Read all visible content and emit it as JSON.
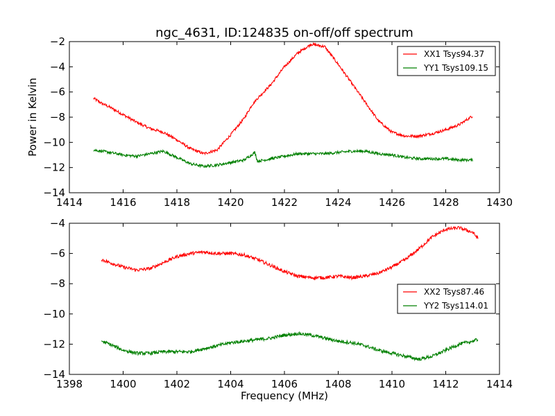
{
  "chart_data": [
    {
      "type": "line",
      "title": "ngc_4631, ID:124835 on-off/off spectrum",
      "xlabel": "",
      "ylabel": "Power in Kelvin",
      "xlim": [
        1414,
        1430
      ],
      "ylim": [
        -14,
        -2
      ],
      "xticks": [
        1414,
        1416,
        1418,
        1420,
        1422,
        1424,
        1426,
        1428,
        1430
      ],
      "yticks": [
        -14,
        -12,
        -10,
        -8,
        -6,
        -4,
        -2
      ],
      "legend_position": "top-right",
      "grid": false,
      "series": [
        {
          "name": "XX1 Tsys94.37",
          "color": "#ff0000",
          "x": [
            1414.9,
            1415.2,
            1415.5,
            1416.0,
            1416.5,
            1417.0,
            1417.5,
            1418.0,
            1418.5,
            1419.0,
            1419.5,
            1420.0,
            1420.5,
            1420.8,
            1421.0,
            1421.5,
            1422.0,
            1422.5,
            1423.0,
            1423.5,
            1424.0,
            1424.5,
            1425.0,
            1425.5,
            1426.0,
            1426.5,
            1427.0,
            1427.5,
            1428.0,
            1428.5,
            1429.0
          ],
          "y": [
            -6.5,
            -6.9,
            -7.2,
            -7.8,
            -8.4,
            -8.9,
            -9.2,
            -9.8,
            -10.5,
            -10.9,
            -10.6,
            -9.4,
            -8.1,
            -7.0,
            -6.5,
            -5.4,
            -4.0,
            -2.9,
            -2.2,
            -2.4,
            -3.8,
            -5.3,
            -6.8,
            -8.3,
            -9.2,
            -9.5,
            -9.5,
            -9.3,
            -9.0,
            -8.6,
            -7.9
          ]
        },
        {
          "name": "YY1 Tsys109.15",
          "color": "#008000",
          "x": [
            1414.9,
            1415.5,
            1416.0,
            1416.5,
            1417.0,
            1417.5,
            1418.0,
            1418.5,
            1419.0,
            1419.5,
            1420.0,
            1420.5,
            1420.9,
            1421.0,
            1421.5,
            1422.0,
            1422.5,
            1423.0,
            1423.5,
            1424.0,
            1424.5,
            1425.0,
            1425.5,
            1426.0,
            1426.5,
            1427.0,
            1427.5,
            1428.0,
            1428.5,
            1429.0
          ],
          "y": [
            -10.6,
            -10.8,
            -11.0,
            -11.1,
            -10.9,
            -10.7,
            -11.2,
            -11.7,
            -11.9,
            -11.8,
            -11.6,
            -11.4,
            -10.8,
            -11.5,
            -11.3,
            -11.1,
            -10.9,
            -10.9,
            -10.9,
            -10.8,
            -10.7,
            -10.7,
            -10.9,
            -11.0,
            -11.2,
            -11.3,
            -11.3,
            -11.3,
            -11.4,
            -11.4
          ]
        }
      ]
    },
    {
      "type": "line",
      "title": "",
      "xlabel": "Frequency (MHz)",
      "ylabel": "",
      "xlim": [
        1398,
        1414
      ],
      "ylim": [
        -14,
        -4
      ],
      "xticks": [
        1398,
        1400,
        1402,
        1404,
        1406,
        1408,
        1410,
        1412,
        1414
      ],
      "yticks": [
        -14,
        -12,
        -10,
        -8,
        -6,
        -4
      ],
      "legend_position": "center-right",
      "grid": false,
      "series": [
        {
          "name": "XX2 Tsys87.46",
          "color": "#ff0000",
          "x": [
            1399.2,
            1399.5,
            1400.0,
            1400.5,
            1401.0,
            1401.5,
            1402.0,
            1402.5,
            1403.0,
            1403.5,
            1404.0,
            1404.5,
            1405.0,
            1405.5,
            1406.0,
            1406.5,
            1407.0,
            1407.5,
            1408.0,
            1408.5,
            1409.0,
            1409.5,
            1410.0,
            1410.5,
            1411.0,
            1411.5,
            1412.0,
            1412.5,
            1413.0,
            1413.2
          ],
          "y": [
            -6.4,
            -6.6,
            -6.9,
            -7.1,
            -7.0,
            -6.6,
            -6.2,
            -6.0,
            -5.9,
            -6.0,
            -6.0,
            -6.1,
            -6.4,
            -6.8,
            -7.2,
            -7.5,
            -7.6,
            -7.6,
            -7.5,
            -7.6,
            -7.5,
            -7.3,
            -6.9,
            -6.4,
            -5.7,
            -4.9,
            -4.4,
            -4.3,
            -4.6,
            -5.0
          ]
        },
        {
          "name": "YY2 Tsys114.01",
          "color": "#008000",
          "x": [
            1399.2,
            1399.5,
            1400.0,
            1400.5,
            1401.0,
            1401.5,
            1402.0,
            1402.5,
            1403.0,
            1403.5,
            1404.0,
            1404.5,
            1405.0,
            1405.5,
            1406.0,
            1406.5,
            1407.0,
            1407.5,
            1408.0,
            1408.5,
            1409.0,
            1409.5,
            1410.0,
            1410.5,
            1411.0,
            1411.5,
            1412.0,
            1412.5,
            1413.0,
            1413.2
          ],
          "y": [
            -11.8,
            -12.0,
            -12.4,
            -12.6,
            -12.6,
            -12.5,
            -12.5,
            -12.5,
            -12.3,
            -12.1,
            -11.9,
            -11.8,
            -11.7,
            -11.6,
            -11.4,
            -11.3,
            -11.4,
            -11.6,
            -11.8,
            -11.9,
            -12.1,
            -12.4,
            -12.6,
            -12.8,
            -13.0,
            -12.8,
            -12.4,
            -12.0,
            -11.8,
            -11.7
          ]
        }
      ]
    }
  ]
}
